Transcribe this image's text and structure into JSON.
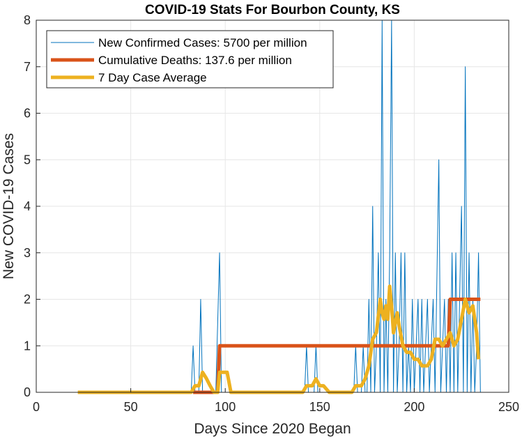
{
  "chart_data": {
    "type": "line",
    "title": "COVID-19 Stats For Bourbon County, KS",
    "xlabel": "Days Since 2020 Began",
    "ylabel": "New COVID-19 Cases",
    "xlim": [
      0,
      250
    ],
    "ylim": [
      0,
      8
    ],
    "xticks": [
      "0",
      "50",
      "100",
      "150",
      "200",
      "250"
    ],
    "yticks": [
      "0",
      "1",
      "2",
      "3",
      "4",
      "5",
      "6",
      "7",
      "8"
    ],
    "grid": true,
    "legend_position": "top-left",
    "series": [
      {
        "name": "New Confirmed Cases: 5700 per million",
        "color": "#0072BD",
        "style": "thin",
        "points": [
          [
            22,
            0
          ],
          [
            82,
            0
          ],
          [
            83,
            1
          ],
          [
            84,
            0
          ],
          [
            86,
            0
          ],
          [
            87,
            2
          ],
          [
            88,
            0
          ],
          [
            95,
            0
          ],
          [
            97,
            3
          ],
          [
            98,
            0
          ],
          [
            142,
            0
          ],
          [
            143,
            1
          ],
          [
            144,
            0
          ],
          [
            147,
            0
          ],
          [
            148,
            1
          ],
          [
            149,
            0
          ],
          [
            168,
            0
          ],
          [
            169,
            1
          ],
          [
            170,
            0
          ],
          [
            172,
            0
          ],
          [
            173,
            1
          ],
          [
            174,
            0
          ],
          [
            175,
            0
          ],
          [
            176,
            2
          ],
          [
            177,
            0
          ],
          [
            178,
            4
          ],
          [
            179,
            0
          ],
          [
            180,
            1
          ],
          [
            181,
            3
          ],
          [
            182,
            0
          ],
          [
            183,
            8
          ],
          [
            184,
            0
          ],
          [
            185,
            2
          ],
          [
            186,
            0
          ],
          [
            187,
            3
          ],
          [
            188,
            8
          ],
          [
            189,
            0
          ],
          [
            190,
            3
          ],
          [
            191,
            0
          ],
          [
            192,
            1
          ],
          [
            193,
            3
          ],
          [
            194,
            0
          ],
          [
            195,
            3
          ],
          [
            196,
            0
          ],
          [
            197,
            1
          ],
          [
            198,
            0
          ],
          [
            199,
            2
          ],
          [
            200,
            0
          ],
          [
            201,
            1
          ],
          [
            202,
            2
          ],
          [
            203,
            0
          ],
          [
            204,
            2
          ],
          [
            205,
            0
          ],
          [
            206,
            1
          ],
          [
            207,
            2
          ],
          [
            208,
            0
          ],
          [
            209,
            1
          ],
          [
            210,
            2
          ],
          [
            211,
            0
          ],
          [
            213,
            5
          ],
          [
            214,
            0
          ],
          [
            216,
            2
          ],
          [
            217,
            0
          ],
          [
            218,
            2
          ],
          [
            219,
            0
          ],
          [
            220,
            3
          ],
          [
            221,
            0
          ],
          [
            222,
            3
          ],
          [
            223,
            0
          ],
          [
            224,
            2
          ],
          [
            225,
            4
          ],
          [
            226,
            0
          ],
          [
            227,
            7
          ],
          [
            228,
            0
          ],
          [
            229,
            3
          ],
          [
            230,
            0
          ],
          [
            231,
            2
          ],
          [
            232,
            0
          ],
          [
            233,
            1
          ],
          [
            234,
            3
          ],
          [
            235,
            0
          ]
        ]
      },
      {
        "name": "Cumulative Deaths: 137.6 per million",
        "color": "#D95319",
        "style": "thick",
        "points": [
          [
            83,
            0
          ],
          [
            96,
            0
          ],
          [
            97,
            1
          ],
          [
            218,
            1
          ],
          [
            219,
            2
          ],
          [
            235,
            2
          ]
        ]
      },
      {
        "name": "7 Day Case Average",
        "color": "#EDB120",
        "style": "thick",
        "points": [
          [
            22,
            0
          ],
          [
            82,
            0
          ],
          [
            84,
            0.14
          ],
          [
            86,
            0.14
          ],
          [
            88,
            0.43
          ],
          [
            90,
            0.3
          ],
          [
            92,
            0.14
          ],
          [
            94,
            0
          ],
          [
            96,
            0
          ],
          [
            97,
            0.43
          ],
          [
            101,
            0.43
          ],
          [
            103,
            0
          ],
          [
            141,
            0
          ],
          [
            143,
            0.14
          ],
          [
            146,
            0.14
          ],
          [
            148,
            0.29
          ],
          [
            150,
            0.14
          ],
          [
            152,
            0.14
          ],
          [
            155,
            0
          ],
          [
            167,
            0
          ],
          [
            169,
            0.14
          ],
          [
            172,
            0.14
          ],
          [
            174,
            0.29
          ],
          [
            176,
            0.57
          ],
          [
            178,
            1.14
          ],
          [
            180,
            1.29
          ],
          [
            182,
            2.0
          ],
          [
            183,
            1.71
          ],
          [
            184,
            1.57
          ],
          [
            185,
            1.86
          ],
          [
            186,
            1.57
          ],
          [
            187,
            2.28
          ],
          [
            188,
            1.86
          ],
          [
            189,
            1.28
          ],
          [
            191,
            1.71
          ],
          [
            192,
            1.43
          ],
          [
            194,
            1.0
          ],
          [
            196,
            0.86
          ],
          [
            198,
            0.86
          ],
          [
            200,
            0.71
          ],
          [
            202,
            0.71
          ],
          [
            204,
            0.57
          ],
          [
            207,
            0.57
          ],
          [
            209,
            0.71
          ],
          [
            211,
            1.14
          ],
          [
            213,
            1.14
          ],
          [
            215,
            1.0
          ],
          [
            217,
            1.14
          ],
          [
            219,
            1.28
          ],
          [
            221,
            1.0
          ],
          [
            223,
            1.14
          ],
          [
            225,
            1.57
          ],
          [
            227,
            2.0
          ],
          [
            229,
            1.71
          ],
          [
            231,
            1.86
          ],
          [
            233,
            1.28
          ],
          [
            234,
            0.71
          ]
        ]
      }
    ]
  }
}
